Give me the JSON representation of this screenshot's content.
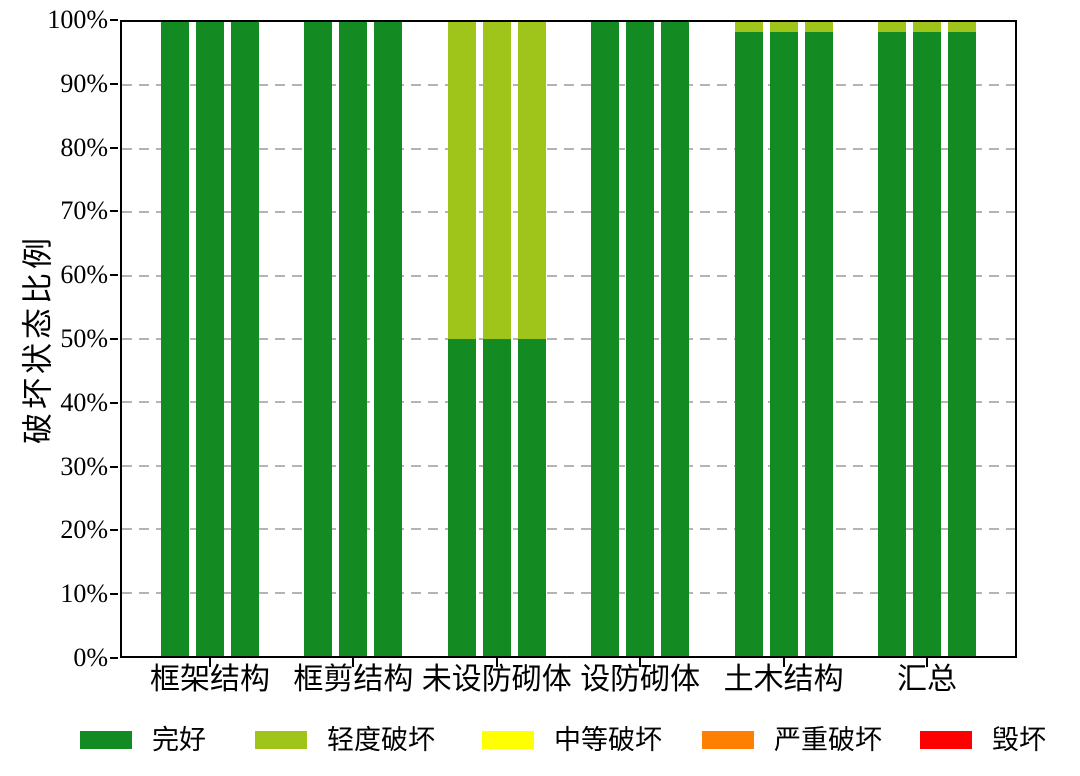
{
  "chart_data": {
    "type": "bar",
    "stacked": true,
    "orientation": "vertical",
    "title": "",
    "xlabel": "",
    "ylabel": "破坏状态比例",
    "ylim": [
      0,
      100
    ],
    "ytick_labels": [
      "0%",
      "10%",
      "20%",
      "30%",
      "40%",
      "50%",
      "60%",
      "70%",
      "80%",
      "90%",
      "100%"
    ],
    "grid": "horizontal-dashed",
    "gridline_color": "#b4b4b4",
    "legend_position": "bottom",
    "categories": [
      "框架结构",
      "框剪结构",
      "未设防砌体",
      "设防砌体",
      "土木结构",
      "汇总"
    ],
    "bars_per_category": 3,
    "series": [
      {
        "name": "完好",
        "color": "#148A22",
        "values_pct": [
          [
            100,
            100,
            100
          ],
          [
            100,
            100,
            100
          ],
          [
            50,
            50,
            50
          ],
          [
            100,
            100,
            100
          ],
          [
            98.5,
            98.5,
            98.5
          ],
          [
            98.5,
            98.5,
            98.5
          ]
        ]
      },
      {
        "name": "轻度破坏",
        "color": "#9FC41A",
        "values_pct": [
          [
            0,
            0,
            0
          ],
          [
            0,
            0,
            0
          ],
          [
            50,
            50,
            50
          ],
          [
            0,
            0,
            0
          ],
          [
            1.5,
            1.5,
            1.5
          ],
          [
            1.5,
            1.5,
            1.5
          ]
        ]
      },
      {
        "name": "中等破坏",
        "color": "#FFFF00",
        "values_pct": [
          [
            0,
            0,
            0
          ],
          [
            0,
            0,
            0
          ],
          [
            0,
            0,
            0
          ],
          [
            0,
            0,
            0
          ],
          [
            0,
            0,
            0
          ],
          [
            0,
            0,
            0
          ]
        ]
      },
      {
        "name": "严重破坏",
        "color": "#FF7F00",
        "values_pct": [
          [
            0,
            0,
            0
          ],
          [
            0,
            0,
            0
          ],
          [
            0,
            0,
            0
          ],
          [
            0,
            0,
            0
          ],
          [
            0,
            0,
            0
          ],
          [
            0,
            0,
            0
          ]
        ]
      },
      {
        "name": "毁坏",
        "color": "#FF0000",
        "values_pct": [
          [
            0,
            0,
            0
          ],
          [
            0,
            0,
            0
          ],
          [
            0,
            0,
            0
          ],
          [
            0,
            0,
            0
          ],
          [
            0,
            0,
            0
          ],
          [
            0,
            0,
            0
          ]
        ]
      }
    ]
  }
}
